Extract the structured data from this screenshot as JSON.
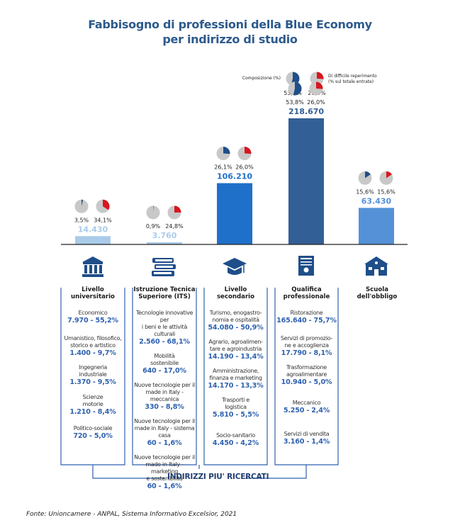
{
  "title_line1": "Fabbisogno di professioni della Blue Economy",
  "title_line2": "per indirizzo di studio",
  "legend": {
    "composition_label": "Composizione (%)",
    "composition_value": "53,8%",
    "difficulty_label_1": "Di difficile reperimento",
    "difficulty_label_2": "(% sul totale entrate)",
    "difficulty_value": "26,0%"
  },
  "colors": {
    "bar_light": "#a9cbe9",
    "bar_mid": "#1f70c9",
    "bar_dark": "#325f95",
    "bar_school": "#5591d7",
    "pie_composition": "#1f4e8a",
    "pie_difficulty": "#d9161f",
    "pie_base": "#c8c8c8",
    "bracket": "#2f62b0"
  },
  "chart_data": {
    "type": "bar",
    "title": "Fabbisogno di professioni della Blue Economy per indirizzo di studio",
    "categories": [
      "Livello universitario",
      "Istruzione Tecnica Superiore (ITS)",
      "Livello secondario",
      "Qualifica professionale",
      "Scuola dell'obbligo"
    ],
    "values": [
      14430,
      3760,
      106210,
      218670,
      63430
    ],
    "value_labels": [
      "14.430",
      "3.760",
      "106.210",
      "218.670",
      "63.430"
    ],
    "composition_pct": [
      3.5,
      0.9,
      26.1,
      53.8,
      15.6
    ],
    "composition_labels": [
      "3,5%",
      "0,9%",
      "26,1%",
      "53,8%",
      "15,6%"
    ],
    "difficulty_pct": [
      34.1,
      24.8,
      26.0,
      26.0,
      15.6
    ],
    "difficulty_labels": [
      "34,1%",
      "24,8%",
      "26,0%",
      "26,0%",
      "15,6%"
    ],
    "ylim": [
      0,
      218670
    ]
  },
  "columns": [
    {
      "head1": "Livello",
      "head2": "universitario",
      "items": [
        {
          "name": [
            "Economico"
          ],
          "value": "7.970 - 55,2%"
        },
        {
          "name": [
            "Umanistico, filosofico,",
            "storico e artistico"
          ],
          "value": "1.400 - 9,7%"
        },
        {
          "name": [
            "Ingegneria",
            "industriale"
          ],
          "value": "1.370 - 9,5%"
        },
        {
          "name": [
            "Scienze",
            "motorie"
          ],
          "value": "1.210 - 8,4%"
        },
        {
          "name": [
            "Politico-sociale"
          ],
          "value": "720 - 5,0%"
        }
      ]
    },
    {
      "head1": "Istruzione Tecnica",
      "head2": "Superiore (ITS)",
      "items": [
        {
          "name": [
            "Tecnologie innovative per",
            "i beni e le attività culturali"
          ],
          "value": "2.560 - 68,1%"
        },
        {
          "name": [
            "Mobilità",
            "sostenibile"
          ],
          "value": "640 - 17,0%"
        },
        {
          "name": [
            "Nuove tecnologie per il",
            "made in Italy - meccanica"
          ],
          "value": "330 - 8,8%"
        },
        {
          "name": [
            "Nuove tecnologie per il",
            "made in Italy - sistema",
            "casa"
          ],
          "value": "60 - 1,6%"
        },
        {
          "name": [
            "Nuove tecnologie per il",
            "made in Italy - marketing",
            "e sostenibilità"
          ],
          "value": "60 - 1,6%"
        }
      ]
    },
    {
      "head1": "Livello",
      "head2": "secondario",
      "items": [
        {
          "name": [
            "Turismo, enogastro-",
            "nomia e ospitalità"
          ],
          "value": "54.080 - 50,9%"
        },
        {
          "name": [
            "Agrario, agroalimen-",
            "tare e agroindustria"
          ],
          "value": "14.190 - 13,4%"
        },
        {
          "name": [
            "Amministrazione,",
            "finanza e marketing"
          ],
          "value": "14.170 - 13,3%"
        },
        {
          "name": [
            "Trasporti e",
            "logistica"
          ],
          "value": "5.810 - 5,5%"
        },
        {
          "name": [
            "Socio-sanitario"
          ],
          "value": "4.450 - 4,2%"
        }
      ]
    },
    {
      "head1": "Qualifica",
      "head2": "professionale",
      "items": [
        {
          "name": [
            "Ristorazione"
          ],
          "value": "165.640 - 75,7%"
        },
        {
          "name": [
            "Servizi di promozio-",
            "ne e accoglienza"
          ],
          "value": "17.790 - 8,1%"
        },
        {
          "name": [
            "Trasformazione",
            "agroalimentare"
          ],
          "value": "10.940 - 5,0%"
        },
        {
          "name": [
            "Meccanico"
          ],
          "value": "5.250 - 2,4%"
        },
        {
          "name": [
            "Servizi di vendita"
          ],
          "value": "3.160 - 1,4%"
        }
      ]
    },
    {
      "head1": "Scuola",
      "head2": "dell'obbligo",
      "items": []
    }
  ],
  "icons": [
    "university-icon",
    "books-icon",
    "graduation-cap-icon",
    "certificate-icon",
    "school-building-icon"
  ],
  "footer": "INDIRIZZI PIU' RICERCATI",
  "source": "Fonte: Unioncamere - ANPAL, Sistema Informativo Excelsior, 2021"
}
